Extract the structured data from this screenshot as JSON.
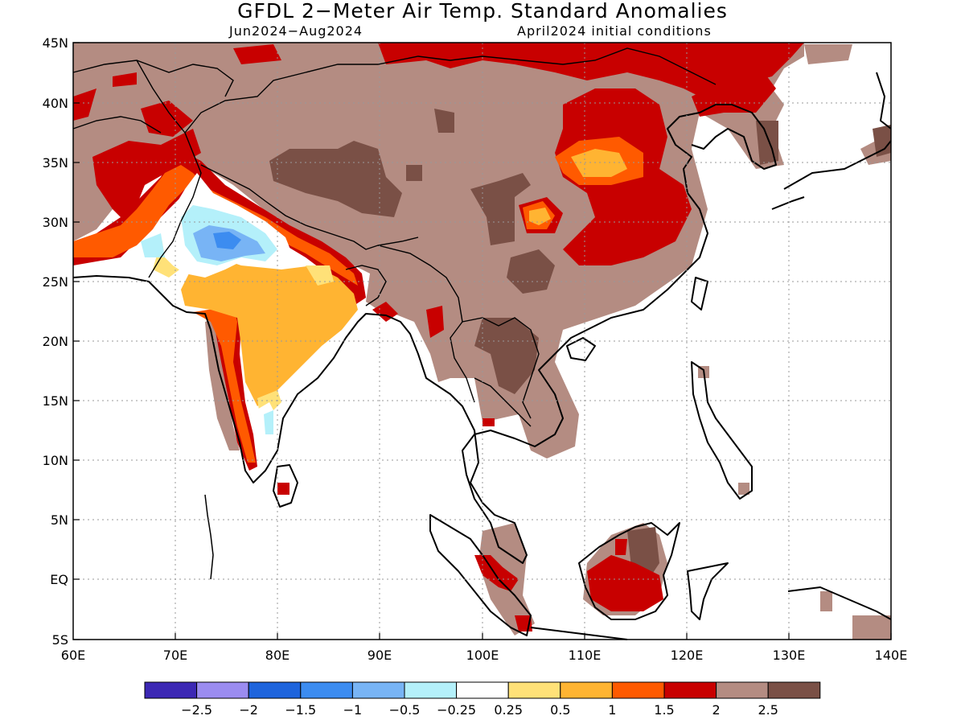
{
  "title": "GFDL 2−Meter Air Temp. Standard Anomalies",
  "period": "Jun2024−Aug2024",
  "init": "April2024 initial conditions",
  "lat_labels": [
    "45N",
    "40N",
    "35N",
    "30N",
    "25N",
    "20N",
    "15N",
    "10N",
    "5N",
    "EQ",
    "5S"
  ],
  "lon_labels": [
    "60E",
    "70E",
    "80E",
    "90E",
    "100E",
    "110E",
    "120E",
    "130E",
    "140E"
  ],
  "legend": {
    "labels": [
      "−2.5",
      "−2",
      "−1.5",
      "−1",
      "−0.5",
      "−0.25",
      "0.25",
      "0.5",
      "1",
      "1.5",
      "2",
      "2.5"
    ],
    "colors": [
      "#3c28b4",
      "#9b8cf0",
      "#1e64dc",
      "#3c8cf0",
      "#78b4f5",
      "#b4f0fa",
      "#ffffff",
      "#ffe178",
      "#ffb432",
      "#ff5a00",
      "#c80000",
      "#b48c82",
      "#7a5046"
    ]
  },
  "colors": {
    "brown_light": "#b48c82",
    "brown_dark": "#7a5046",
    "red": "#c80000",
    "orange": "#ff5a00",
    "gold": "#ffb432",
    "yellow": "#ffe178",
    "cyan_light": "#b4f0fa",
    "blue_light": "#78b4f5",
    "blue": "#3c8cf0"
  }
}
